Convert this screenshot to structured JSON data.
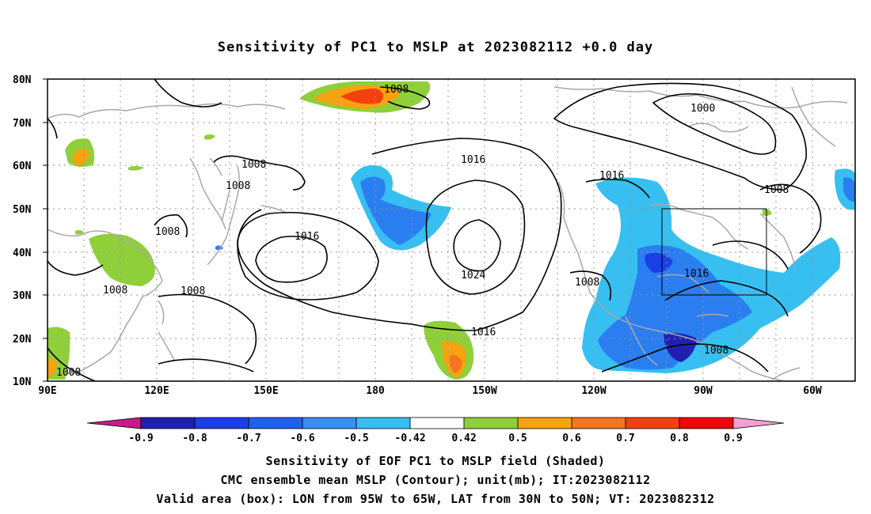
{
  "title": "Sensitivity of PC1 to MSLP at 2023082112 +0.0 day",
  "lat_labels": [
    "80N",
    "70N",
    "60N",
    "50N",
    "40N",
    "30N",
    "20N",
    "10N"
  ],
  "lon_labels": [
    "90E",
    "120E",
    "150E",
    "180",
    "150W",
    "120W",
    "90W",
    "60W"
  ],
  "contour_labels": {
    "c1": "1008",
    "c2": "1000",
    "c3": "1016",
    "c4": "1008",
    "c5": "1008",
    "c6": "1016",
    "c7": "1008",
    "c8": "1016",
    "c9": "1008",
    "c10": "1024",
    "c11": "1008",
    "c12": "1016",
    "c13": "1008",
    "c14": "1008",
    "c15": "1016",
    "c16": "1008",
    "c17": "1008"
  },
  "colorbar": {
    "labels": [
      "-0.9",
      "-0.8",
      "-0.7",
      "-0.6",
      "-0.5",
      "-0.42",
      "0.42",
      "0.5",
      "0.6",
      "0.7",
      "0.8",
      "0.9"
    ],
    "colors": [
      "#2020b0",
      "#1a3fe6",
      "#2060f0",
      "#3a8ef5",
      "#36bff0",
      "#ffffff",
      "#8fcf3a",
      "#f7a20f",
      "#f5751f",
      "#f2400f",
      "#e80808"
    ],
    "low_end_color": "#c81b8a",
    "high_end_color": "#f3a0d0"
  },
  "captions": {
    "line1": "Sensitivity of EOF PC1 to MSLP field (Shaded)",
    "line2": "CMC ensemble mean MSLP (Contour); unit(mb); IT:2023082112",
    "line3": "Valid area (box): LON from 95W to 65W, LAT from 30N to 50N; VT: 2023082312"
  },
  "colors": {
    "coast": "#a8a8a8",
    "contour": "#000000",
    "grid": "#9a9a9a",
    "neg_light": "#36bff0",
    "neg_mid": "#2a7ef0",
    "pos_green": "#8fcf3a",
    "pos_orange": "#f7a20f",
    "pos_red": "#f2400f"
  }
}
